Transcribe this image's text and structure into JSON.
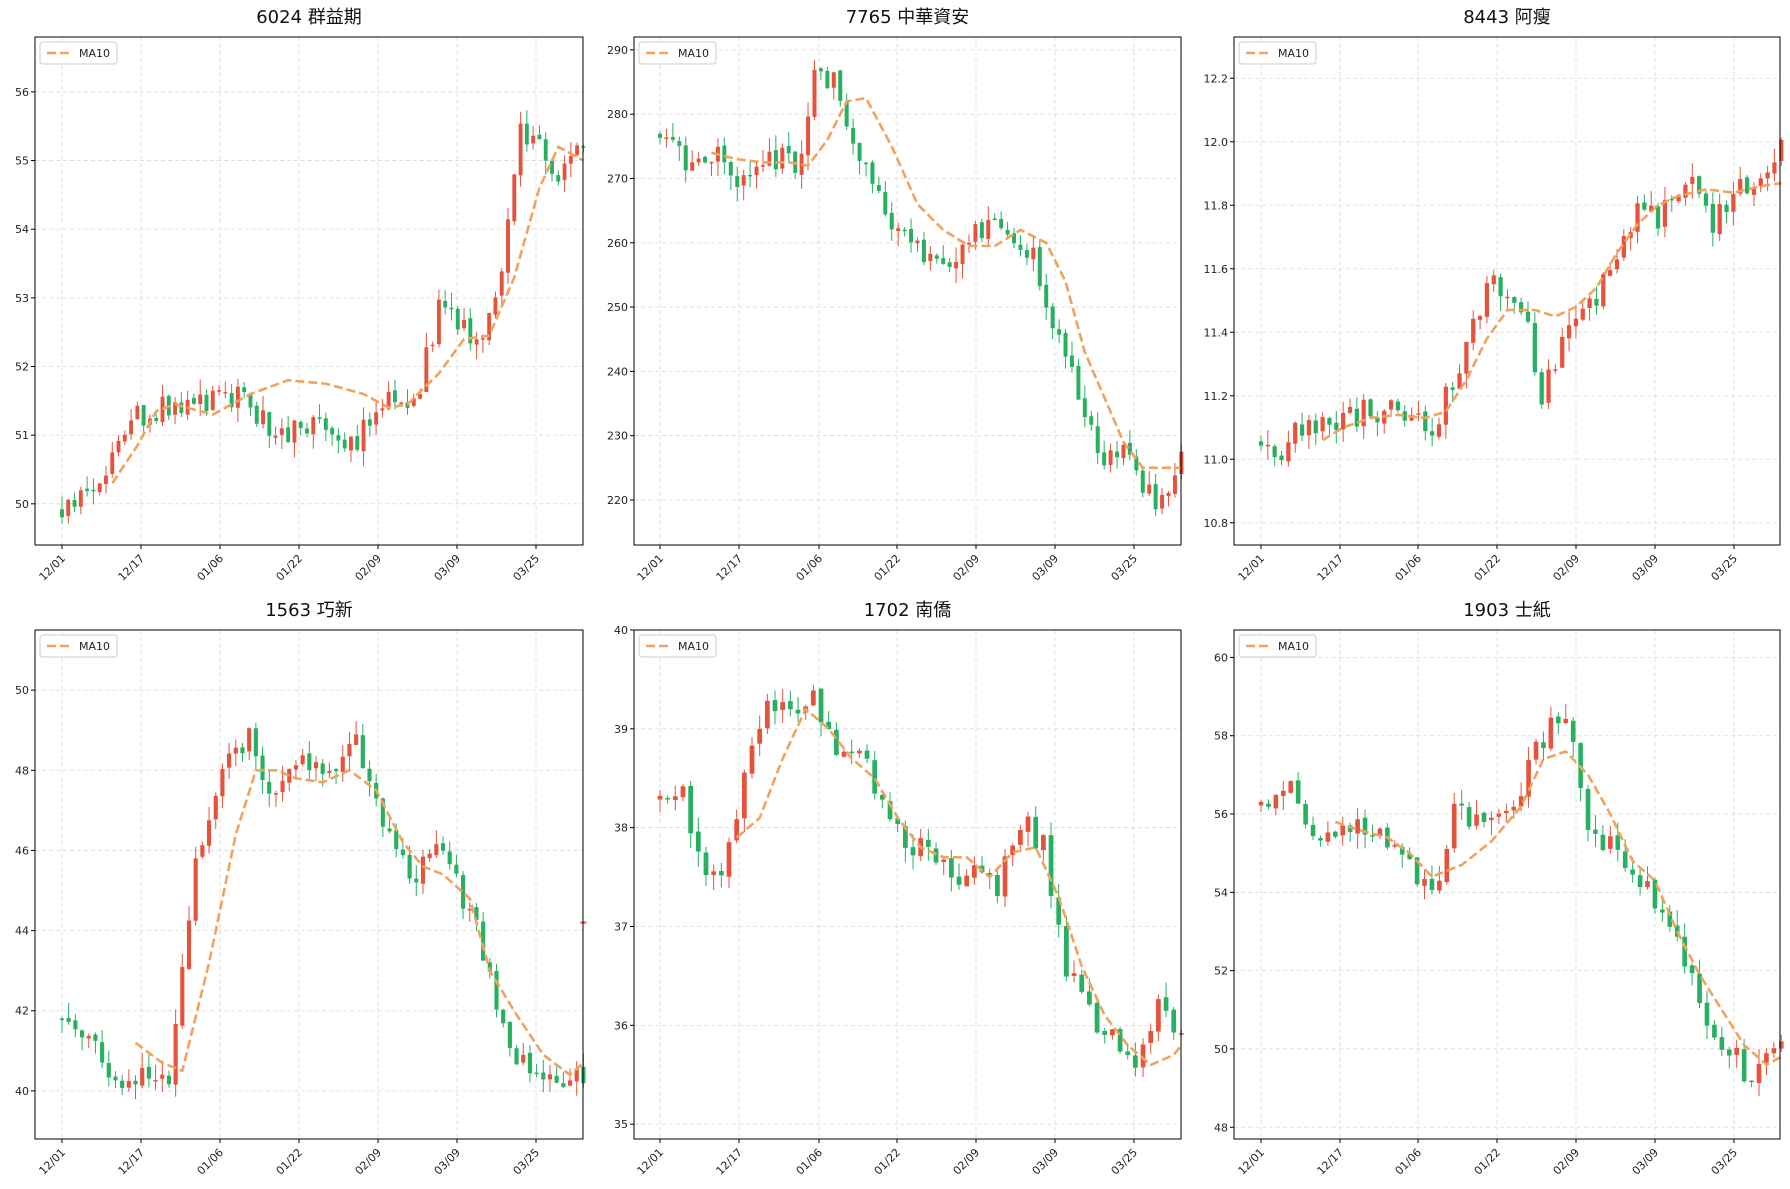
{
  "colors": {
    "up": "#e5533d",
    "down": "#27b062",
    "ma": "#f0a35e",
    "grid": "#d9d9d9",
    "axis": "#000000"
  },
  "chart_data": [
    {
      "type": "candlestick",
      "title": "6024 群益期",
      "legend": {
        "label": "MA10",
        "placement": "top-left"
      },
      "grid": true,
      "x_tick_labels": [
        "12/01",
        "12/17",
        "01/06",
        "01/22",
        "02/09",
        "03/09",
        "03/25"
      ],
      "ylim": [
        49.4,
        56.8
      ],
      "y_ticks": [
        50,
        51,
        52,
        53,
        54,
        55,
        56
      ],
      "waypoints": [
        [
          0,
          49.9
        ],
        [
          7,
          50.4
        ],
        [
          12,
          51.3
        ],
        [
          17,
          51.4
        ],
        [
          22,
          51.5
        ],
        [
          28,
          51.6
        ],
        [
          35,
          51.0
        ],
        [
          41,
          51.1
        ],
        [
          46,
          50.8
        ],
        [
          52,
          51.6
        ],
        [
          56,
          51.4
        ],
        [
          60,
          52.8
        ],
        [
          63,
          52.6
        ],
        [
          67,
          52.4
        ],
        [
          70,
          53.5
        ],
        [
          73,
          55.5
        ],
        [
          76,
          55.2
        ],
        [
          79,
          54.8
        ],
        [
          83,
          55.2
        ]
      ],
      "ma": [
        [
          8,
          50.3
        ],
        [
          12,
          50.85
        ],
        [
          15,
          51.35
        ],
        [
          18,
          51.45
        ],
        [
          24,
          51.3
        ],
        [
          30,
          51.6
        ],
        [
          36,
          51.8
        ],
        [
          42,
          51.75
        ],
        [
          48,
          51.6
        ],
        [
          52,
          51.4
        ],
        [
          55,
          51.45
        ],
        [
          60,
          51.9
        ],
        [
          64,
          52.4
        ],
        [
          68,
          52.45
        ],
        [
          72,
          53.3
        ],
        [
          76,
          54.6
        ],
        [
          79,
          55.2
        ],
        [
          83,
          55.0
        ]
      ]
    },
    {
      "type": "candlestick",
      "title": "7765 中華資安",
      "legend": {
        "label": "MA10",
        "placement": "top-left"
      },
      "grid": true,
      "x_tick_labels": [
        "12/01",
        "12/17",
        "01/06",
        "01/22",
        "02/09",
        "03/09",
        "03/25"
      ],
      "ylim": [
        213,
        292
      ],
      "y_ticks": [
        220,
        230,
        240,
        250,
        260,
        270,
        280,
        290
      ],
      "waypoints": [
        [
          0,
          277
        ],
        [
          4,
          272
        ],
        [
          9,
          275
        ],
        [
          12,
          268
        ],
        [
          16,
          272
        ],
        [
          19,
          274
        ],
        [
          22,
          272
        ],
        [
          24,
          286
        ],
        [
          27,
          285
        ],
        [
          30,
          276
        ],
        [
          33,
          270
        ],
        [
          36,
          264
        ],
        [
          39,
          259
        ],
        [
          42,
          258
        ],
        [
          45,
          255
        ],
        [
          48,
          261
        ],
        [
          52,
          262
        ],
        [
          55,
          261
        ],
        [
          58,
          258
        ],
        [
          60,
          248
        ],
        [
          63,
          243
        ],
        [
          66,
          232
        ],
        [
          69,
          227
        ],
        [
          72,
          228
        ],
        [
          75,
          222
        ],
        [
          78,
          219
        ],
        [
          81,
          228
        ]
      ],
      "ma": [
        [
          8,
          274
        ],
        [
          12,
          273
        ],
        [
          16,
          272.5
        ],
        [
          20,
          272.5
        ],
        [
          23,
          272
        ],
        [
          26,
          276
        ],
        [
          29,
          282
        ],
        [
          32,
          282.5
        ],
        [
          36,
          275
        ],
        [
          40,
          266
        ],
        [
          44,
          262
        ],
        [
          48,
          259.5
        ],
        [
          52,
          259.5
        ],
        [
          56,
          262
        ],
        [
          60,
          260
        ],
        [
          63,
          254
        ],
        [
          66,
          243
        ],
        [
          69,
          236
        ],
        [
          72,
          229
        ],
        [
          75,
          225
        ],
        [
          78,
          225
        ],
        [
          81,
          225
        ]
      ]
    },
    {
      "type": "candlestick",
      "title": "8443 阿瘦",
      "legend": {
        "label": "MA10",
        "placement": "top-left"
      },
      "grid": true,
      "x_tick_labels": [
        "12/01",
        "12/17",
        "01/06",
        "01/22",
        "02/09",
        "03/09",
        "03/25"
      ],
      "ylim": [
        10.73,
        12.33
      ],
      "y_ticks": [
        10.8,
        11.0,
        11.2,
        11.4,
        11.6,
        11.8,
        12.0,
        12.2
      ],
      "waypoints": [
        [
          0,
          11.05
        ],
        [
          3,
          11.0
        ],
        [
          5,
          11.1
        ],
        [
          10,
          11.1
        ],
        [
          15,
          11.15
        ],
        [
          20,
          11.15
        ],
        [
          25,
          11.1
        ],
        [
          30,
          11.35
        ],
        [
          33,
          11.55
        ],
        [
          38,
          11.5
        ],
        [
          41,
          11.2
        ],
        [
          45,
          11.4
        ],
        [
          50,
          11.55
        ],
        [
          55,
          11.8
        ],
        [
          58,
          11.75
        ],
        [
          62,
          11.9
        ],
        [
          66,
          11.75
        ],
        [
          69,
          11.85
        ],
        [
          73,
          11.85
        ],
        [
          76,
          12.0
        ]
      ],
      "ma": [
        [
          9,
          11.06
        ],
        [
          12,
          11.1
        ],
        [
          16,
          11.13
        ],
        [
          20,
          11.14
        ],
        [
          24,
          11.13
        ],
        [
          27,
          11.15
        ],
        [
          30,
          11.25
        ],
        [
          33,
          11.38
        ],
        [
          36,
          11.47
        ],
        [
          40,
          11.47
        ],
        [
          43,
          11.45
        ],
        [
          46,
          11.48
        ],
        [
          49,
          11.54
        ],
        [
          52,
          11.65
        ],
        [
          55,
          11.74
        ],
        [
          58,
          11.8
        ],
        [
          61,
          11.83
        ],
        [
          65,
          11.85
        ],
        [
          69,
          11.84
        ],
        [
          73,
          11.86
        ],
        [
          76,
          11.87
        ]
      ]
    },
    {
      "type": "candlestick",
      "title": "1563 巧新",
      "legend": {
        "label": "MA10",
        "placement": "top-left"
      },
      "grid": true,
      "x_tick_labels": [
        "12/01",
        "12/17",
        "01/06",
        "01/22",
        "02/09",
        "03/09",
        "03/25"
      ],
      "ylim": [
        38.8,
        51.5
      ],
      "y_ticks": [
        40,
        42,
        44,
        46,
        48,
        50
      ],
      "waypoints": [
        [
          0,
          41.8
        ],
        [
          4,
          41.6
        ],
        [
          8,
          40.2
        ],
        [
          12,
          40.4
        ],
        [
          16,
          40.2
        ],
        [
          20,
          45.8
        ],
        [
          24,
          48.3
        ],
        [
          28,
          48.8
        ],
        [
          31,
          47.3
        ],
        [
          34,
          47.8
        ],
        [
          36,
          48.3
        ],
        [
          40,
          47.9
        ],
        [
          44,
          48.7
        ],
        [
          47,
          47.0
        ],
        [
          50,
          45.8
        ],
        [
          53,
          45.3
        ],
        [
          56,
          46.2
        ],
        [
          59,
          45.2
        ],
        [
          62,
          44.0
        ],
        [
          65,
          42.0
        ],
        [
          68,
          40.8
        ],
        [
          71,
          40.4
        ],
        [
          74,
          40.2
        ],
        [
          78,
          40.3
        ]
      ],
      "ma": [
        [
          11,
          41.2
        ],
        [
          15,
          40.7
        ],
        [
          18,
          40.5
        ],
        [
          22,
          43.2
        ],
        [
          26,
          46.4
        ],
        [
          29,
          48.0
        ],
        [
          32,
          48.0
        ],
        [
          35,
          47.8
        ],
        [
          39,
          47.7
        ],
        [
          43,
          48.0
        ],
        [
          47,
          47.5
        ],
        [
          51,
          46.2
        ],
        [
          54,
          45.6
        ],
        [
          57,
          45.4
        ],
        [
          61,
          44.8
        ],
        [
          64,
          43.0
        ],
        [
          68,
          41.9
        ],
        [
          72,
          40.9
        ],
        [
          76,
          40.4
        ],
        [
          78,
          40.7
        ]
      ],
      "outlier": {
        "x": 78,
        "y": 44.2
      }
    },
    {
      "type": "candlestick",
      "title": "1702 南僑",
      "legend": {
        "label": "MA10",
        "placement": "top-left"
      },
      "grid": true,
      "x_tick_labels": [
        "12/01",
        "12/17",
        "01/06",
        "01/22",
        "02/09",
        "03/09",
        "03/25"
      ],
      "ylim": [
        34.85,
        40.0
      ],
      "y_ticks": [
        35,
        36,
        37,
        38,
        39,
        40
      ],
      "waypoints": [
        [
          0,
          38.3
        ],
        [
          3,
          38.3
        ],
        [
          6,
          37.6
        ],
        [
          8,
          37.5
        ],
        [
          11,
          38.5
        ],
        [
          14,
          39.3
        ],
        [
          17,
          39.1
        ],
        [
          20,
          39.3
        ],
        [
          23,
          38.7
        ],
        [
          26,
          38.8
        ],
        [
          29,
          38.2
        ],
        [
          32,
          37.8
        ],
        [
          35,
          37.8
        ],
        [
          38,
          37.5
        ],
        [
          41,
          37.6
        ],
        [
          44,
          37.4
        ],
        [
          47,
          38.1
        ],
        [
          50,
          37.8
        ],
        [
          53,
          36.6
        ],
        [
          56,
          36.1
        ],
        [
          59,
          35.9
        ],
        [
          62,
          35.5
        ],
        [
          65,
          36.3
        ],
        [
          68,
          35.8
        ]
      ],
      "ma": [
        [
          10,
          37.9
        ],
        [
          13,
          38.1
        ],
        [
          16,
          38.7
        ],
        [
          19,
          39.2
        ],
        [
          22,
          39.0
        ],
        [
          25,
          38.7
        ],
        [
          28,
          38.5
        ],
        [
          31,
          38.1
        ],
        [
          34,
          37.8
        ],
        [
          37,
          37.7
        ],
        [
          40,
          37.7
        ],
        [
          43,
          37.5
        ],
        [
          46,
          37.75
        ],
        [
          49,
          37.8
        ],
        [
          52,
          37.3
        ],
        [
          55,
          36.6
        ],
        [
          58,
          36.1
        ],
        [
          61,
          35.8
        ],
        [
          64,
          35.6
        ],
        [
          67,
          35.7
        ],
        [
          68,
          35.8
        ]
      ]
    },
    {
      "type": "candlestick",
      "title": "1903 士紙",
      "legend": {
        "label": "MA10",
        "placement": "top-left"
      },
      "grid": true,
      "x_tick_labels": [
        "12/01",
        "12/17",
        "01/06",
        "01/22",
        "02/09",
        "03/09",
        "03/25"
      ],
      "ylim": [
        47.7,
        60.7
      ],
      "y_ticks": [
        48,
        50,
        52,
        54,
        56,
        58,
        60
      ],
      "waypoints": [
        [
          0,
          56.2
        ],
        [
          4,
          56.8
        ],
        [
          8,
          55.2
        ],
        [
          12,
          55.8
        ],
        [
          16,
          55.5
        ],
        [
          20,
          54.6
        ],
        [
          24,
          54.0
        ],
        [
          26,
          56.0
        ],
        [
          30,
          55.9
        ],
        [
          34,
          56.2
        ],
        [
          38,
          58.0
        ],
        [
          41,
          58.6
        ],
        [
          44,
          55.5
        ],
        [
          48,
          55.2
        ],
        [
          52,
          54.0
        ],
        [
          56,
          52.6
        ],
        [
          59,
          51.2
        ],
        [
          62,
          50.2
        ],
        [
          66,
          49.2
        ],
        [
          70,
          50.3
        ]
      ],
      "ma": [
        [
          10,
          55.8
        ],
        [
          13,
          55.6
        ],
        [
          17,
          55.4
        ],
        [
          20,
          55.0
        ],
        [
          23,
          54.4
        ],
        [
          27,
          54.7
        ],
        [
          31,
          55.3
        ],
        [
          35,
          56.2
        ],
        [
          38,
          57.4
        ],
        [
          41,
          57.6
        ],
        [
          44,
          57.0
        ],
        [
          47,
          56.0
        ],
        [
          50,
          54.8
        ],
        [
          53,
          54.3
        ],
        [
          56,
          53.0
        ],
        [
          59,
          51.9
        ],
        [
          62,
          51.0
        ],
        [
          65,
          50.1
        ],
        [
          68,
          49.6
        ],
        [
          70,
          49.8
        ]
      ]
    }
  ]
}
